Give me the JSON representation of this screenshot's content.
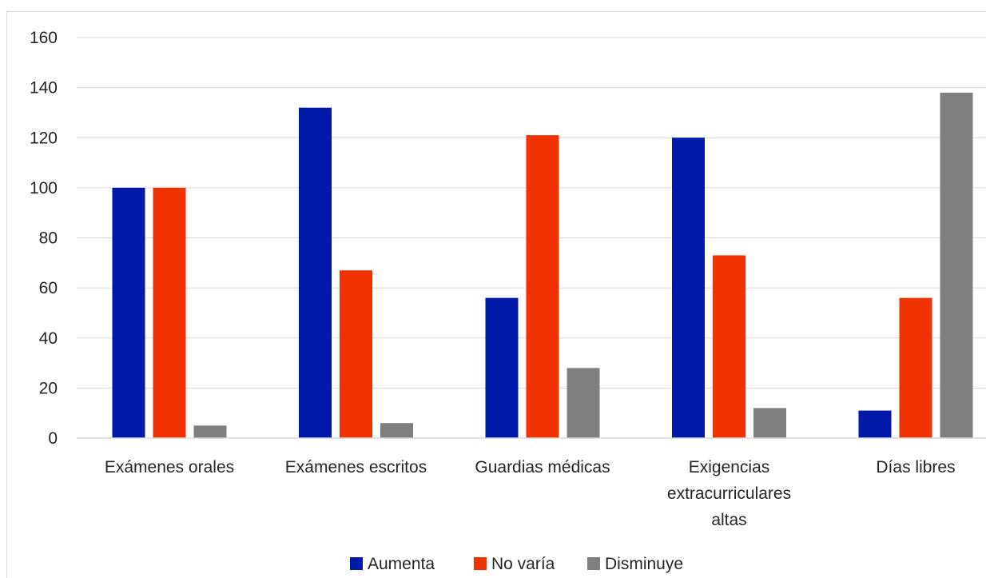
{
  "chart_data": {
    "type": "bar",
    "categories": [
      [
        "Exámenes orales"
      ],
      [
        "Exámenes escritos"
      ],
      [
        "Guardias médicas"
      ],
      [
        "Exigencias",
        "extracurriculares",
        "altas"
      ],
      [
        "Días libres"
      ]
    ],
    "series": [
      {
        "name": "Aumenta",
        "color": "#0019a8",
        "values": [
          100,
          132,
          56,
          120,
          11
        ]
      },
      {
        "name": "No varía",
        "color": "#f03200",
        "values": [
          100,
          67,
          121,
          73,
          56
        ]
      },
      {
        "name": "Disminuye",
        "color": "#7f7f7f",
        "values": [
          5,
          6,
          28,
          12,
          138
        ]
      }
    ],
    "ylim": [
      0,
      160
    ],
    "yticks": [
      0,
      20,
      40,
      60,
      80,
      100,
      120,
      140,
      160
    ],
    "grid": true,
    "legend_position": "bottom",
    "title": "",
    "xlabel": "",
    "ylabel": ""
  }
}
